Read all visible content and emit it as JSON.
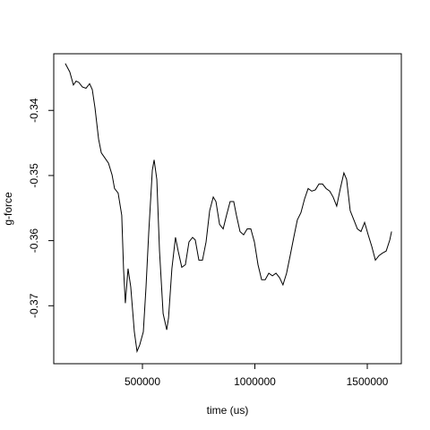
{
  "chart_data": {
    "type": "line",
    "x_label": "time (us)",
    "y_label": "g-force",
    "color": "#000000",
    "xlim": [
      105600,
      1651400
    ],
    "ylim": [
      -0.3789,
      -0.3313
    ],
    "xticks": [
      500000,
      1000000,
      1500000
    ],
    "yticks": [
      -0.34,
      -0.35,
      -0.36,
      -0.37
    ],
    "x": [
      157000,
      177000,
      193000,
      205000,
      217000,
      233000,
      249000,
      265000,
      277000,
      289000,
      305000,
      317000,
      333000,
      349000,
      365000,
      376000,
      392000,
      408000,
      416000,
      424000,
      436000,
      448000,
      464000,
      476000,
      488000,
      504000,
      516000,
      528000,
      544000,
      552000,
      564000,
      576000,
      592000,
      608000,
      616000,
      631000,
      647000,
      659000,
      675000,
      691000,
      707000,
      723000,
      735000,
      751000,
      767000,
      783000,
      799000,
      815000,
      827000,
      843000,
      859000,
      874000,
      890000,
      906000,
      918000,
      934000,
      950000,
      966000,
      982000,
      998000,
      1014000,
      1030000,
      1046000,
      1062000,
      1078000,
      1094000,
      1110000,
      1125000,
      1141000,
      1157000,
      1173000,
      1189000,
      1205000,
      1221000,
      1237000,
      1253000,
      1269000,
      1285000,
      1301000,
      1317000,
      1333000,
      1348000,
      1364000,
      1380000,
      1396000,
      1408000,
      1424000,
      1440000,
      1456000,
      1472000,
      1488000,
      1504000,
      1520000,
      1536000,
      1552000,
      1568000,
      1584000,
      1600000,
      1608000
    ],
    "values": [
      -0.3328,
      -0.3341,
      -0.3361,
      -0.3355,
      -0.3357,
      -0.3364,
      -0.3366,
      -0.3359,
      -0.3368,
      -0.3396,
      -0.3444,
      -0.3465,
      -0.3473,
      -0.3481,
      -0.3499,
      -0.352,
      -0.3527,
      -0.3561,
      -0.3643,
      -0.3696,
      -0.3643,
      -0.3671,
      -0.374,
      -0.377,
      -0.376,
      -0.374,
      -0.3671,
      -0.3588,
      -0.3492,
      -0.3476,
      -0.3506,
      -0.3616,
      -0.3712,
      -0.3737,
      -0.3719,
      -0.3643,
      -0.3595,
      -0.3616,
      -0.3641,
      -0.3637,
      -0.3602,
      -0.3595,
      -0.3599,
      -0.363,
      -0.363,
      -0.3602,
      -0.3554,
      -0.3533,
      -0.354,
      -0.3575,
      -0.3582,
      -0.3561,
      -0.354,
      -0.354,
      -0.3561,
      -0.3586,
      -0.3591,
      -0.3582,
      -0.3582,
      -0.3602,
      -0.3637,
      -0.366,
      -0.366,
      -0.365,
      -0.3654,
      -0.365,
      -0.3657,
      -0.3668,
      -0.365,
      -0.3623,
      -0.3595,
      -0.3568,
      -0.3557,
      -0.3536,
      -0.352,
      -0.3524,
      -0.3522,
      -0.3513,
      -0.3513,
      -0.352,
      -0.3524,
      -0.3533,
      -0.3547,
      -0.352,
      -0.3496,
      -0.3506,
      -0.3554,
      -0.3568,
      -0.3582,
      -0.3586,
      -0.3572,
      -0.3591,
      -0.3609,
      -0.363,
      -0.3623,
      -0.3619,
      -0.3616,
      -0.3599,
      -0.3586
    ]
  }
}
